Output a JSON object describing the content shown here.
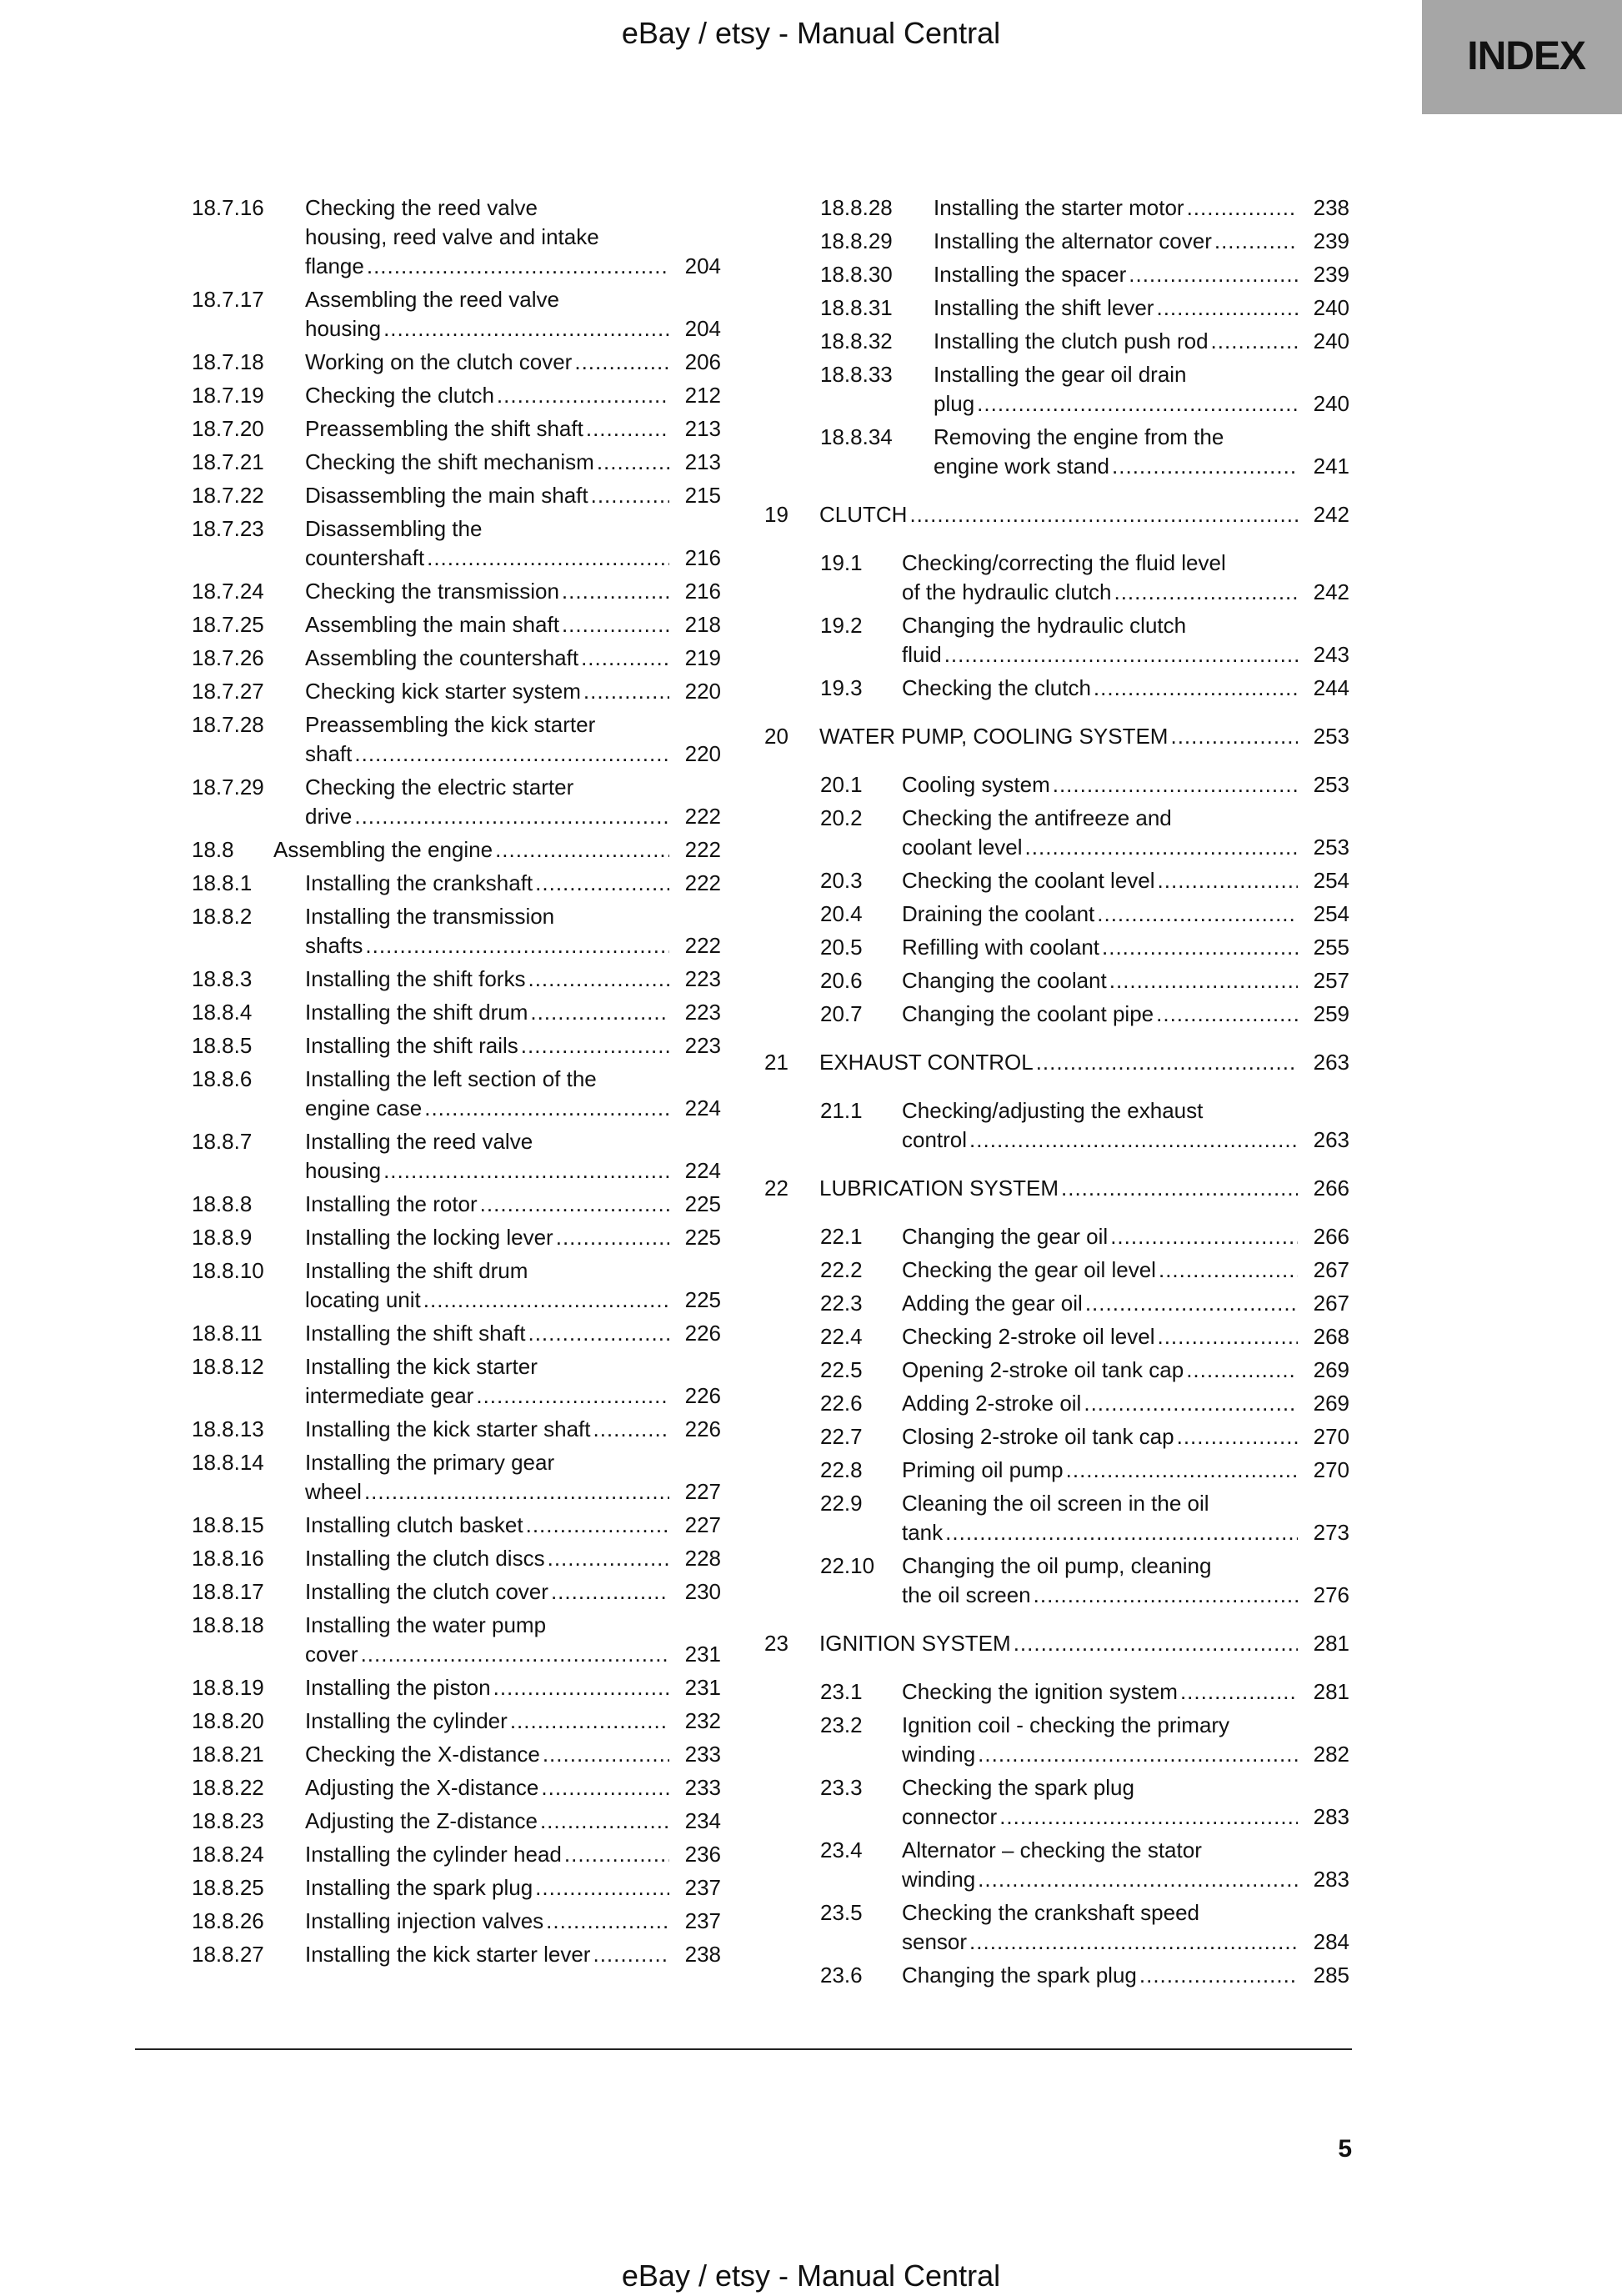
{
  "header": {
    "text": "eBay / etsy - Manual Central"
  },
  "badge": {
    "label": "INDEX",
    "color": "#a6a6a6"
  },
  "footer": {
    "text": "eBay / etsy - Manual Central"
  },
  "page_number": "5",
  "left_column": [
    {
      "num": "18.7.16",
      "title": "Checking the reed valve\nhousing, reed valve and intake\nflange",
      "page": "204"
    },
    {
      "num": "18.7.17",
      "title": "Assembling the reed valve\nhousing",
      "page": "204"
    },
    {
      "num": "18.7.18",
      "title": "Working on the clutch cover",
      "page": "206"
    },
    {
      "num": "18.7.19",
      "title": "Checking the clutch",
      "page": "212"
    },
    {
      "num": "18.7.20",
      "title": "Preassembling the shift shaft",
      "page": "213"
    },
    {
      "num": "18.7.21",
      "title": "Checking the shift mechanism",
      "page": "213"
    },
    {
      "num": "18.7.22",
      "title": "Disassembling the main shaft",
      "page": "215"
    },
    {
      "num": "18.7.23",
      "title": "Disassembling the\ncountershaft",
      "page": "216"
    },
    {
      "num": "18.7.24",
      "title": "Checking the transmission",
      "page": "216"
    },
    {
      "num": "18.7.25",
      "title": "Assembling the main shaft",
      "page": "218"
    },
    {
      "num": "18.7.26",
      "title": "Assembling the countershaft",
      "page": "219"
    },
    {
      "num": "18.7.27",
      "title": "Checking kick starter system",
      "page": "220"
    },
    {
      "num": "18.7.28",
      "title": "Preassembling the kick starter\nshaft",
      "page": "220"
    },
    {
      "num": "18.7.29",
      "title": "Checking the electric starter\ndrive",
      "page": "222"
    },
    {
      "num": "18.8",
      "title": "Assembling the engine",
      "page": "222"
    },
    {
      "num": "18.8.1",
      "title": "Installing the crankshaft",
      "page": "222"
    },
    {
      "num": "18.8.2",
      "title": "Installing the transmission\nshafts",
      "page": "222"
    },
    {
      "num": "18.8.3",
      "title": "Installing the shift forks",
      "page": "223"
    },
    {
      "num": "18.8.4",
      "title": "Installing the shift drum",
      "page": "223"
    },
    {
      "num": "18.8.5",
      "title": "Installing the shift rails",
      "page": "223"
    },
    {
      "num": "18.8.6",
      "title": "Installing the left section of the\nengine case",
      "page": "224"
    },
    {
      "num": "18.8.7",
      "title": "Installing the reed valve\nhousing",
      "page": "224"
    },
    {
      "num": "18.8.8",
      "title": "Installing the rotor",
      "page": "225"
    },
    {
      "num": "18.8.9",
      "title": "Installing the locking lever",
      "page": "225"
    },
    {
      "num": "18.8.10",
      "title": "Installing the shift drum\nlocating unit",
      "page": "225"
    },
    {
      "num": "18.8.11",
      "title": "Installing the shift shaft",
      "page": "226"
    },
    {
      "num": "18.8.12",
      "title": "Installing the kick starter\nintermediate gear",
      "page": "226"
    },
    {
      "num": "18.8.13",
      "title": "Installing the kick starter shaft",
      "page": "226"
    },
    {
      "num": "18.8.14",
      "title": "Installing the primary gear\nwheel",
      "page": "227"
    },
    {
      "num": "18.8.15",
      "title": "Installing clutch basket",
      "page": "227"
    },
    {
      "num": "18.8.16",
      "title": "Installing the clutch discs",
      "page": "228"
    },
    {
      "num": "18.8.17",
      "title": "Installing the clutch cover",
      "page": "230"
    },
    {
      "num": "18.8.18",
      "title": "Installing the water pump\ncover",
      "page": "231"
    },
    {
      "num": "18.8.19",
      "title": "Installing the piston",
      "page": "231"
    },
    {
      "num": "18.8.20",
      "title": "Installing the cylinder",
      "page": "232"
    },
    {
      "num": "18.8.21",
      "title": "Checking the X-distance",
      "page": "233"
    },
    {
      "num": "18.8.22",
      "title": "Adjusting the X-distance",
      "page": "233"
    },
    {
      "num": "18.8.23",
      "title": "Adjusting the Z-distance",
      "page": "234"
    },
    {
      "num": "18.8.24",
      "title": "Installing the cylinder head",
      "page": "236"
    },
    {
      "num": "18.8.25",
      "title": "Installing the spark plug",
      "page": "237"
    },
    {
      "num": "18.8.26",
      "title": "Installing injection valves",
      "page": "237"
    },
    {
      "num": "18.8.27",
      "title": "Installing the kick starter lever",
      "page": "238"
    }
  ],
  "right_column": [
    {
      "num": "18.8.28",
      "title": "Installing the starter motor",
      "page": "238"
    },
    {
      "num": "18.8.29",
      "title": "Installing the alternator cover",
      "page": "239"
    },
    {
      "num": "18.8.30",
      "title": "Installing the spacer",
      "page": "239"
    },
    {
      "num": "18.8.31",
      "title": "Installing the shift lever",
      "page": "240"
    },
    {
      "num": "18.8.32",
      "title": "Installing the clutch push rod",
      "page": "240"
    },
    {
      "num": "18.8.33",
      "title": "Installing the gear oil drain\nplug",
      "page": "240"
    },
    {
      "num": "18.8.34",
      "title": "Removing the engine from the\nengine work stand",
      "page": "241"
    },
    {
      "num": "19",
      "title": "CLUTCH",
      "page": "242"
    },
    {
      "num": "19.1",
      "title": "Checking/correcting the fluid level\nof the hydraulic clutch",
      "page": "242"
    },
    {
      "num": "19.2",
      "title": "Changing the hydraulic clutch\nfluid",
      "page": "243"
    },
    {
      "num": "19.3",
      "title": "Checking the clutch",
      "page": "244"
    },
    {
      "num": "20",
      "title": "WATER PUMP, COOLING SYSTEM",
      "page": "253"
    },
    {
      "num": "20.1",
      "title": "Cooling system",
      "page": "253"
    },
    {
      "num": "20.2",
      "title": "Checking the antifreeze and\ncoolant level",
      "page": "253"
    },
    {
      "num": "20.3",
      "title": "Checking the coolant level",
      "page": "254"
    },
    {
      "num": "20.4",
      "title": "Draining the coolant",
      "page": "254"
    },
    {
      "num": "20.5",
      "title": "Refilling with coolant",
      "page": "255"
    },
    {
      "num": "20.6",
      "title": "Changing the coolant",
      "page": "257"
    },
    {
      "num": "20.7",
      "title": "Changing the coolant pipe",
      "page": "259"
    },
    {
      "num": "21",
      "title": "EXHAUST CONTROL",
      "page": "263"
    },
    {
      "num": "21.1",
      "title": "Checking/adjusting the exhaust\ncontrol",
      "page": "263"
    },
    {
      "num": "22",
      "title": "LUBRICATION SYSTEM",
      "page": "266"
    },
    {
      "num": "22.1",
      "title": "Changing the gear oil",
      "page": "266"
    },
    {
      "num": "22.2",
      "title": "Checking the gear oil level",
      "page": "267"
    },
    {
      "num": "22.3",
      "title": "Adding the gear oil",
      "page": "267"
    },
    {
      "num": "22.4",
      "title": "Checking 2-stroke oil level",
      "page": "268"
    },
    {
      "num": "22.5",
      "title": "Opening 2-stroke oil tank cap",
      "page": "269"
    },
    {
      "num": "22.6",
      "title": "Adding 2-stroke oil",
      "page": "269"
    },
    {
      "num": "22.7",
      "title": "Closing 2-stroke oil tank cap",
      "page": "270"
    },
    {
      "num": "22.8",
      "title": "Priming oil pump",
      "page": "270"
    },
    {
      "num": "22.9",
      "title": "Cleaning the oil screen in the oil\ntank",
      "page": "273"
    },
    {
      "num": "22.10",
      "title": "Changing the oil pump, cleaning\nthe oil screen",
      "page": "276"
    },
    {
      "num": "23",
      "title": "IGNITION SYSTEM",
      "page": "281"
    },
    {
      "num": "23.1",
      "title": "Checking the ignition system",
      "page": "281"
    },
    {
      "num": "23.2",
      "title": "Ignition coil - checking the primary\nwinding",
      "page": "282"
    },
    {
      "num": "23.3",
      "title": "Checking the spark plug\nconnector",
      "page": "283"
    },
    {
      "num": "23.4",
      "title": "Alternator – checking the stator\nwinding",
      "page": "283"
    },
    {
      "num": "23.5",
      "title": "Checking the crankshaft speed\nsensor",
      "page": "284"
    },
    {
      "num": "23.6",
      "title": "Changing the spark plug",
      "page": "285"
    }
  ]
}
